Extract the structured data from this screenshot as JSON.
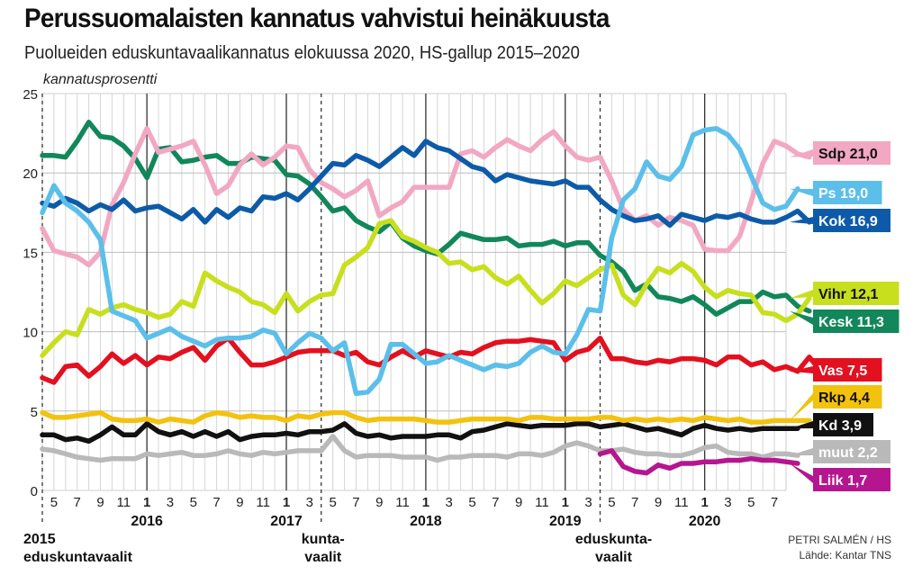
{
  "header": {
    "title": "Perussuomalaisten kannatus vahvistui heinäkuusta",
    "subtitle": "Puolueiden eduskuntavaalikannatus elokuussa 2020, HS-gallup 2015–2020",
    "y_axis_label": "kannatusprosentti"
  },
  "credit": {
    "author": "PETRI SALMÉN / HS",
    "source": "Lähde: Kantar TNS"
  },
  "chart_data": {
    "type": "line",
    "title": "Perussuomalaisten kannatus vahvistui heinäkuusta",
    "subtitle": "Puolueiden eduskuntavaalikannatus elokuussa 2020, HS-gallup 2015–2020",
    "ylabel": "kannatusprosentti",
    "xlabel": "",
    "ylim": [
      0,
      25
    ],
    "yticks": [
      "0",
      "5",
      "10",
      "15",
      "20",
      "25"
    ],
    "x_start": "2015-04",
    "x_end": "2020-08",
    "x_month_ticks": [
      "5",
      "7",
      "9",
      "11",
      "1",
      "3",
      "5",
      "7",
      "9",
      "11",
      "1",
      "3",
      "5",
      "7",
      "9",
      "11",
      "1",
      "3",
      "5",
      "7",
      "9",
      "11",
      "1",
      "3",
      "5",
      "7",
      "9",
      "11",
      "1",
      "3",
      "5",
      "7"
    ],
    "x_month_tick_months": [
      "2015-05",
      "2015-07",
      "2015-09",
      "2015-11",
      "2016-01",
      "2016-03",
      "2016-05",
      "2016-07",
      "2016-09",
      "2016-11",
      "2017-01",
      "2017-03",
      "2017-05",
      "2017-07",
      "2017-09",
      "2017-11",
      "2018-01",
      "2018-03",
      "2018-05",
      "2018-07",
      "2018-09",
      "2018-11",
      "2019-01",
      "2019-03",
      "2019-05",
      "2019-07",
      "2019-09",
      "2019-11",
      "2020-01",
      "2020-03",
      "2020-05",
      "2020-07"
    ],
    "years": [
      {
        "label": "2016",
        "month": "2016-01"
      },
      {
        "label": "2017",
        "month": "2017-01"
      },
      {
        "label": "2018",
        "month": "2018-01"
      },
      {
        "label": "2019",
        "month": "2019-01"
      },
      {
        "label": "2020",
        "month": "2020-01"
      }
    ],
    "events": [
      {
        "month": "2015-04",
        "lines": [
          "2015",
          "eduskuntavaalit"
        ]
      },
      {
        "month": "2017-04",
        "lines": [
          "kunta-",
          "vaalit"
        ]
      },
      {
        "month": "2019-04",
        "lines": [
          "eduskunta-",
          "vaalit"
        ]
      }
    ],
    "grid": true,
    "legend": "right",
    "series": [
      {
        "name": "Sdp",
        "label": "Sdp 21,0",
        "color": "#f2a7c3",
        "text_color": "#111111",
        "start": 0,
        "values": [
          16.5,
          15.1,
          14.9,
          14.7,
          14.2,
          15.0,
          18.0,
          19.4,
          21.2,
          22.8,
          21.3,
          21.5,
          21.7,
          22.0,
          20.5,
          18.7,
          19.2,
          20.5,
          21.2,
          20.5,
          21.0,
          21.7,
          21.6,
          20.2,
          19.4,
          19.0,
          18.5,
          18.9,
          19.5,
          17.3,
          17.8,
          18.2,
          19.1,
          19.1,
          19.1,
          19.1,
          21.2,
          21.4,
          21.0,
          21.6,
          22.1,
          21.7,
          21.4,
          22.1,
          22.6,
          21.7,
          21.0,
          20.8,
          21.0,
          19.5,
          17.7,
          17.0,
          17.3,
          16.7,
          17.2,
          17.0,
          16.7,
          15.2,
          15.1,
          15.1,
          16.0,
          18.2,
          20.6,
          22.0,
          21.7,
          21.2,
          21.0
        ]
      },
      {
        "name": "Ps",
        "label": "Ps 19,0",
        "color": "#5bbfea",
        "text_color": "#ffffff",
        "start": 0,
        "values": [
          17.5,
          19.2,
          18.1,
          17.6,
          16.9,
          15.8,
          11.3,
          11.0,
          10.7,
          9.6,
          9.9,
          10.2,
          9.7,
          9.4,
          9.1,
          9.5,
          9.6,
          9.6,
          9.7,
          10.1,
          9.9,
          8.6,
          9.3,
          9.9,
          9.6,
          8.8,
          9.3,
          6.1,
          6.2,
          7.0,
          9.2,
          9.2,
          8.6,
          8.0,
          8.1,
          8.5,
          8.2,
          7.9,
          7.6,
          7.9,
          7.8,
          8.0,
          8.7,
          9.1,
          8.7,
          8.6,
          9.8,
          11.4,
          11.3,
          15.9,
          18.3,
          19.0,
          20.7,
          19.8,
          19.6,
          20.4,
          22.4,
          22.7,
          22.8,
          22.4,
          21.5,
          19.8,
          18.1,
          17.7,
          17.9,
          19.0
        ]
      },
      {
        "name": "Kok",
        "label": "Kok 16,9",
        "color": "#0d5ba8",
        "text_color": "#ffffff",
        "start": 0,
        "values": [
          18.1,
          17.9,
          18.4,
          18.1,
          17.6,
          18.0,
          17.7,
          18.3,
          17.6,
          17.8,
          17.9,
          17.5,
          17.1,
          17.7,
          16.9,
          17.7,
          17.2,
          17.8,
          17.6,
          18.5,
          18.4,
          18.7,
          18.3,
          19.0,
          19.8,
          20.6,
          20.5,
          21.1,
          20.8,
          20.4,
          21.0,
          21.6,
          21.1,
          22.0,
          21.6,
          21.4,
          20.9,
          20.4,
          20.2,
          19.5,
          19.9,
          19.7,
          19.5,
          19.4,
          19.3,
          19.5,
          19.1,
          19.1,
          18.3,
          17.7,
          17.3,
          17.0,
          17.1,
          17.3,
          16.7,
          17.4,
          17.2,
          17.0,
          17.3,
          17.2,
          17.4,
          17.1,
          16.9,
          16.9,
          17.2,
          17.6,
          16.9
        ]
      },
      {
        "name": "Vihr",
        "label": "Vihr 12,1",
        "color": "#c8df1e",
        "text_color": "#111111",
        "start": 0,
        "values": [
          8.5,
          9.3,
          10.0,
          9.8,
          11.4,
          11.1,
          11.5,
          11.7,
          11.4,
          11.2,
          10.9,
          11.1,
          11.9,
          11.6,
          13.7,
          13.2,
          12.8,
          12.5,
          11.9,
          11.7,
          11.2,
          12.4,
          11.3,
          11.9,
          12.3,
          12.4,
          14.2,
          14.7,
          15.3,
          16.8,
          17.0,
          16.0,
          15.7,
          15.3,
          15.0,
          14.3,
          14.4,
          13.9,
          14.1,
          13.4,
          13.0,
          13.5,
          12.6,
          11.8,
          12.4,
          13.2,
          12.9,
          13.4,
          13.9,
          14.2,
          12.3,
          11.7,
          13.0,
          14.0,
          13.7,
          14.3,
          13.8,
          12.8,
          12.2,
          12.6,
          12.4,
          12.3,
          11.2,
          11.1,
          10.7,
          11.1,
          12.1
        ]
      },
      {
        "name": "Kesk",
        "label": "Kesk 11,3",
        "color": "#11875a",
        "text_color": "#ffffff",
        "start": 0,
        "values": [
          21.1,
          21.1,
          21.0,
          22.0,
          23.2,
          22.3,
          22.2,
          21.7,
          20.9,
          19.7,
          21.5,
          21.6,
          20.7,
          20.8,
          21.0,
          21.1,
          20.6,
          20.6,
          21.0,
          20.9,
          20.8,
          19.9,
          19.8,
          19.3,
          18.5,
          17.6,
          17.8,
          17.0,
          16.6,
          16.3,
          16.9,
          15.9,
          15.4,
          15.1,
          14.9,
          15.5,
          16.2,
          16.0,
          15.8,
          15.8,
          15.9,
          15.4,
          15.5,
          15.5,
          15.7,
          15.4,
          15.6,
          15.6,
          14.8,
          14.4,
          13.8,
          12.6,
          13.0,
          12.2,
          12.1,
          11.9,
          12.2,
          11.7,
          11.1,
          11.5,
          11.9,
          11.9,
          12.5,
          12.2,
          12.3,
          11.6,
          11.3
        ]
      },
      {
        "name": "Vas",
        "label": "Vas 7,5",
        "color": "#e3101f",
        "text_color": "#ffffff",
        "start": 0,
        "values": [
          7.1,
          6.8,
          7.8,
          7.9,
          7.2,
          7.8,
          8.6,
          8.0,
          8.5,
          7.9,
          8.4,
          8.3,
          8.7,
          9.0,
          8.2,
          9.1,
          9.6,
          8.7,
          7.9,
          7.9,
          8.1,
          8.4,
          8.7,
          8.8,
          8.8,
          8.8,
          8.5,
          8.7,
          8.1,
          7.9,
          8.4,
          8.8,
          8.4,
          8.8,
          8.6,
          8.4,
          8.7,
          8.6,
          9.0,
          9.3,
          9.4,
          9.4,
          9.5,
          9.4,
          9.3,
          8.2,
          8.7,
          8.9,
          9.6,
          8.3,
          8.3,
          8.1,
          8.0,
          8.2,
          8.1,
          8.3,
          8.3,
          8.2,
          7.9,
          8.4,
          8.4,
          7.9,
          8.1,
          7.6,
          7.8,
          7.5,
          8.4,
          7.5
        ]
      },
      {
        "name": "Rkp",
        "label": "Rkp 4,4",
        "color": "#f2c20f",
        "text_color": "#111111",
        "start": 0,
        "values": [
          4.9,
          4.6,
          4.6,
          4.7,
          4.8,
          4.9,
          4.5,
          4.4,
          4.4,
          4.5,
          4.3,
          4.5,
          4.4,
          4.3,
          4.7,
          4.9,
          4.8,
          4.6,
          4.7,
          4.6,
          4.6,
          4.4,
          4.7,
          4.6,
          4.8,
          4.9,
          4.9,
          4.6,
          4.4,
          4.5,
          4.5,
          4.5,
          4.5,
          4.4,
          4.3,
          4.3,
          4.4,
          4.5,
          4.5,
          4.5,
          4.5,
          4.4,
          4.6,
          4.6,
          4.5,
          4.5,
          4.5,
          4.5,
          4.6,
          4.6,
          4.4,
          4.5,
          4.4,
          4.5,
          4.4,
          4.5,
          4.4,
          4.6,
          4.5,
          4.4,
          4.5,
          4.3,
          4.3,
          4.4,
          4.4,
          4.4,
          4.4
        ]
      },
      {
        "name": "Kd",
        "label": "Kd 3,9",
        "color": "#111111",
        "text_color": "#ffffff",
        "start": 0,
        "values": [
          3.5,
          3.5,
          3.2,
          3.3,
          3.1,
          3.5,
          4.0,
          3.5,
          3.5,
          4.2,
          3.7,
          3.5,
          3.7,
          3.4,
          3.7,
          3.4,
          3.7,
          3.2,
          3.4,
          3.5,
          3.5,
          3.6,
          3.5,
          3.7,
          3.7,
          3.8,
          4.2,
          3.6,
          3.4,
          3.5,
          3.3,
          3.4,
          3.4,
          3.4,
          3.5,
          3.5,
          3.3,
          3.7,
          3.8,
          4.0,
          4.2,
          4.1,
          4.0,
          4.1,
          4.1,
          4.1,
          4.2,
          4.2,
          4.0,
          4.1,
          4.2,
          4.0,
          3.8,
          3.9,
          3.7,
          3.5,
          3.9,
          4.1,
          3.9,
          3.8,
          3.9,
          3.8,
          3.9,
          3.9,
          3.9,
          3.9
        ]
      },
      {
        "name": "muut",
        "label": "muut 2,2",
        "color": "#b9b9b9",
        "text_color": "#ffffff",
        "start": 0,
        "values": [
          2.6,
          2.5,
          2.3,
          2.1,
          2.0,
          1.9,
          2.0,
          2.0,
          2.0,
          2.3,
          2.2,
          2.3,
          2.4,
          2.2,
          2.2,
          2.3,
          2.5,
          2.3,
          2.2,
          2.4,
          2.3,
          2.4,
          2.5,
          2.5,
          2.5,
          3.4,
          2.5,
          2.1,
          2.2,
          2.2,
          2.2,
          2.1,
          2.1,
          2.1,
          1.9,
          2.1,
          2.1,
          2.2,
          2.2,
          2.2,
          2.1,
          2.3,
          2.3,
          2.2,
          2.4,
          2.8,
          3.0,
          2.8,
          2.5,
          2.5,
          2.6,
          2.4,
          2.3,
          2.3,
          2.2,
          2.2,
          2.4,
          2.7,
          2.8,
          2.4,
          2.3,
          2.3,
          2.1,
          2.3,
          2.3,
          2.2
        ]
      },
      {
        "name": "Liik",
        "label": "Liik 1,7",
        "color": "#b5168f",
        "text_color": "#ffffff",
        "start": 48,
        "values": [
          2.3,
          2.5,
          1.5,
          1.2,
          1.1,
          1.6,
          1.4,
          1.7,
          1.7,
          1.8,
          1.8,
          1.9,
          1.9,
          2.0,
          1.9,
          1.9,
          1.8,
          1.7
        ]
      }
    ]
  }
}
